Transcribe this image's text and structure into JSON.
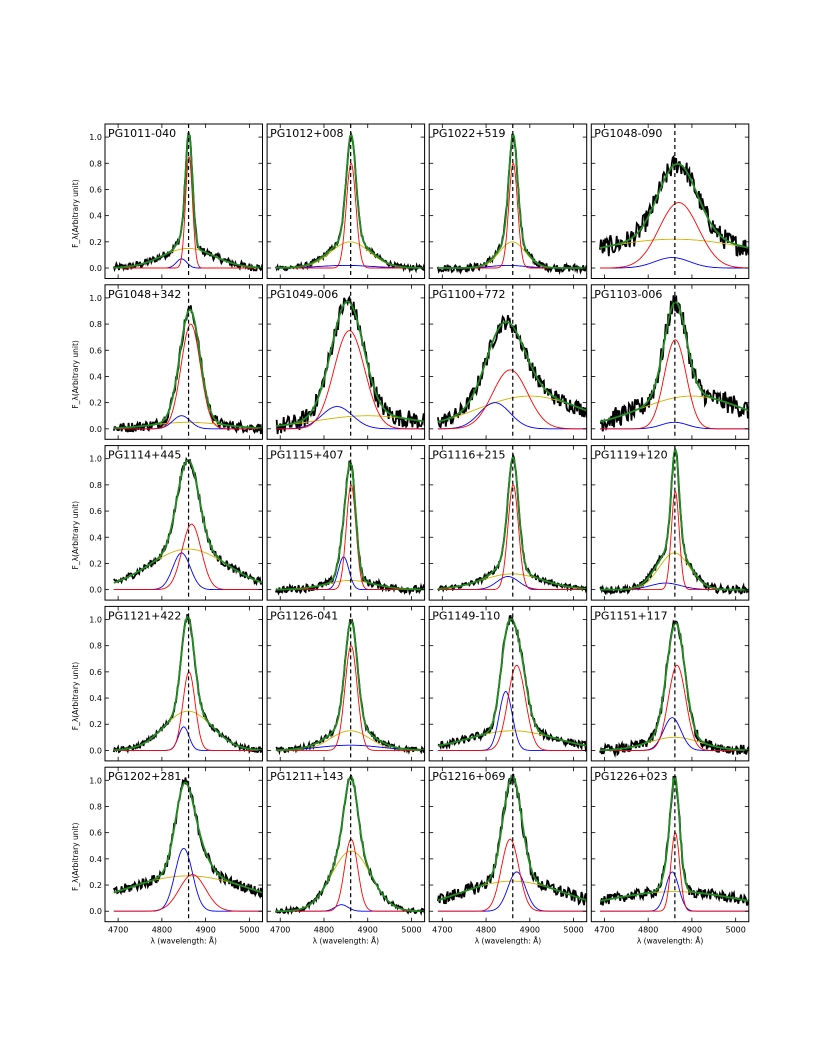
{
  "chart_data": {
    "type": "line",
    "layout": {
      "rows": 5,
      "cols": 4
    },
    "ylabel": "F_λ(Arbitrary unit)",
    "xlabel": "λ (wavelength: Å)",
    "xlim": [
      4670,
      5030
    ],
    "ylim": [
      -0.08,
      1.1
    ],
    "x_ticks": [
      4700,
      4800,
      4900,
      5000
    ],
    "y_ticks": [
      0.0,
      0.2,
      0.4,
      0.6,
      0.8,
      1.0
    ],
    "reference_line": 4861,
    "colors": {
      "observed": "#000000",
      "fit": "#228b22",
      "narrow": "#ff0000",
      "broad": "#0000ff",
      "very_broad": "#d4b200",
      "reference": "#000000"
    },
    "panels": [
      {
        "name": "PG1011-040",
        "narrow": {
          "center": 4862,
          "sigma": 8,
          "amp": 0.85
        },
        "broad": {
          "center": 4845,
          "sigma": 12,
          "amp": 0.07
        },
        "very_broad": {
          "center": 4860,
          "sigma": 60,
          "amp": 0.15
        },
        "noise": 0.03
      },
      {
        "name": "PG1012+008",
        "narrow": {
          "center": 4862,
          "sigma": 11,
          "amp": 0.8
        },
        "broad": {
          "center": 4850,
          "sigma": 60,
          "amp": 0.02
        },
        "very_broad": {
          "center": 4860,
          "sigma": 45,
          "amp": 0.2
        },
        "noise": 0.02
      },
      {
        "name": "PG1022+519",
        "narrow": {
          "center": 4862,
          "sigma": 10,
          "amp": 0.8
        },
        "broad": {
          "center": 4850,
          "sigma": 40,
          "amp": 0.02
        },
        "very_broad": {
          "center": 4860,
          "sigma": 30,
          "amp": 0.2
        },
        "noise": 0.03
      },
      {
        "name": "PG1048-090",
        "narrow": {
          "center": 4870,
          "sigma": 45,
          "amp": 0.5
        },
        "broad": {
          "center": 4855,
          "sigma": 40,
          "amp": 0.08
        },
        "very_broad": {
          "center": 4860,
          "sigma": 200,
          "amp": 0.22
        },
        "noise": 0.08
      },
      {
        "name": "PG1048+342",
        "narrow": {
          "center": 4866,
          "sigma": 22,
          "amp": 0.8
        },
        "broad": {
          "center": 4845,
          "sigma": 20,
          "amp": 0.1
        },
        "very_broad": {
          "center": 4860,
          "sigma": 80,
          "amp": 0.05
        },
        "noise": 0.04
      },
      {
        "name": "PG1049-006",
        "narrow": {
          "center": 4858,
          "sigma": 35,
          "amp": 0.75
        },
        "broad": {
          "center": 4830,
          "sigma": 35,
          "amp": 0.17
        },
        "very_broad": {
          "center": 4900,
          "sigma": 120,
          "amp": 0.1
        },
        "noise": 0.07
      },
      {
        "name": "PG1100+772",
        "narrow": {
          "center": 4855,
          "sigma": 40,
          "amp": 0.45
        },
        "broad": {
          "center": 4820,
          "sigma": 35,
          "amp": 0.2
        },
        "very_broad": {
          "center": 4900,
          "sigma": 120,
          "amp": 0.25
        },
        "noise": 0.06
      },
      {
        "name": "PG1103-006",
        "narrow": {
          "center": 4862,
          "sigma": 25,
          "amp": 0.68
        },
        "broad": {
          "center": 4860,
          "sigma": 30,
          "amp": 0.05
        },
        "very_broad": {
          "center": 4900,
          "sigma": 120,
          "amp": 0.25
        },
        "noise": 0.08
      },
      {
        "name": "PG1114+445",
        "narrow": {
          "center": 4868,
          "sigma": 22,
          "amp": 0.5
        },
        "broad": {
          "center": 4845,
          "sigma": 20,
          "amp": 0.28
        },
        "very_broad": {
          "center": 4860,
          "sigma": 90,
          "amp": 0.31
        },
        "noise": 0.03
      },
      {
        "name": "PG1115+407",
        "narrow": {
          "center": 4862,
          "sigma": 11,
          "amp": 0.8
        },
        "broad": {
          "center": 4845,
          "sigma": 12,
          "amp": 0.25
        },
        "very_broad": {
          "center": 4860,
          "sigma": 55,
          "amp": 0.07
        },
        "noise": 0.03
      },
      {
        "name": "PG1116+215",
        "narrow": {
          "center": 4862,
          "sigma": 12,
          "amp": 0.8
        },
        "broad": {
          "center": 4850,
          "sigma": 25,
          "amp": 0.1
        },
        "very_broad": {
          "center": 4860,
          "sigma": 70,
          "amp": 0.12
        },
        "noise": 0.02
      },
      {
        "name": "PG1119+120",
        "narrow": {
          "center": 4862,
          "sigma": 9,
          "amp": 0.75
        },
        "broad": {
          "center": 4840,
          "sigma": 35,
          "amp": 0.05
        },
        "very_broad": {
          "center": 4860,
          "sigma": 35,
          "amp": 0.28
        },
        "noise": 0.03
      },
      {
        "name": "PG1121+422",
        "narrow": {
          "center": 4862,
          "sigma": 14,
          "amp": 0.6
        },
        "broad": {
          "center": 4850,
          "sigma": 12,
          "amp": 0.18
        },
        "very_broad": {
          "center": 4860,
          "sigma": 55,
          "amp": 0.3
        },
        "noise": 0.02
      },
      {
        "name": "PG1126-041",
        "narrow": {
          "center": 4862,
          "sigma": 14,
          "amp": 0.8
        },
        "broad": {
          "center": 4860,
          "sigma": 70,
          "amp": 0.04
        },
        "very_broad": {
          "center": 4860,
          "sigma": 45,
          "amp": 0.15
        },
        "noise": 0.02
      },
      {
        "name": "PG1149-110",
        "narrow": {
          "center": 4870,
          "sigma": 20,
          "amp": 0.65
        },
        "broad": {
          "center": 4845,
          "sigma": 15,
          "amp": 0.45
        },
        "very_broad": {
          "center": 4860,
          "sigma": 100,
          "amp": 0.15
        },
        "noise": 0.03
      },
      {
        "name": "PG1151+117",
        "narrow": {
          "center": 4866,
          "sigma": 20,
          "amp": 0.65
        },
        "broad": {
          "center": 4855,
          "sigma": 20,
          "amp": 0.25
        },
        "very_broad": {
          "center": 4860,
          "sigma": 60,
          "amp": 0.1
        },
        "noise": 0.04
      },
      {
        "name": "PG1202+281",
        "narrow": {
          "center": 4870,
          "sigma": 30,
          "amp": 0.28
        },
        "broad": {
          "center": 4850,
          "sigma": 20,
          "amp": 0.48
        },
        "very_broad": {
          "center": 4860,
          "sigma": 150,
          "amp": 0.27
        },
        "noise": 0.04
      },
      {
        "name": "PG1211+143",
        "narrow": {
          "center": 4862,
          "sigma": 15,
          "amp": 0.55
        },
        "broad": {
          "center": 4840,
          "sigma": 15,
          "amp": 0.05
        },
        "very_broad": {
          "center": 4862,
          "sigma": 45,
          "amp": 0.46
        },
        "noise": 0.02
      },
      {
        "name": "PG1216+069",
        "narrow": {
          "center": 4855,
          "sigma": 20,
          "amp": 0.55
        },
        "broad": {
          "center": 4870,
          "sigma": 20,
          "amp": 0.3
        },
        "very_broad": {
          "center": 4860,
          "sigma": 120,
          "amp": 0.23
        },
        "noise": 0.05
      },
      {
        "name": "PG1226+023",
        "narrow": {
          "center": 4862,
          "sigma": 10,
          "amp": 0.6
        },
        "broad": {
          "center": 4855,
          "sigma": 15,
          "amp": 0.3
        },
        "very_broad": {
          "center": 4860,
          "sigma": 150,
          "amp": 0.15
        },
        "noise": 0.04
      }
    ]
  }
}
